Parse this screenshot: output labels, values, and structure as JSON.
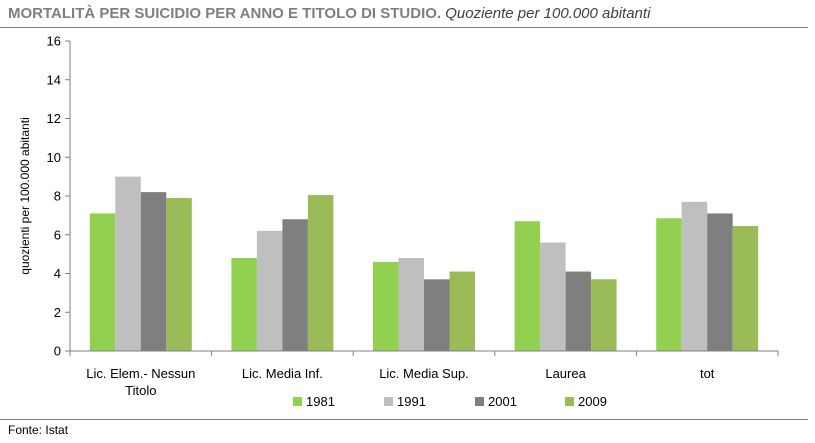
{
  "title": {
    "main": "MORTALITÀ PER SUICIDIO PER ANNO E TITOLO DI STUDIO.",
    "sub": "Quoziente per 100.000 abitanti"
  },
  "source": "Fonte: Istat",
  "chart_data": {
    "type": "bar",
    "title": "MORTALITÀ PER SUICIDIO PER ANNO E TITOLO DI STUDIO. Quoziente per 100.000 abitanti",
    "xlabel": "",
    "ylabel": "quozienti per 100.000 abitanti",
    "ylim": [
      0,
      16
    ],
    "yticks": [
      0,
      2,
      4,
      6,
      8,
      10,
      12,
      14,
      16
    ],
    "grid": false,
    "legend": "bottom",
    "categories": [
      [
        "Lic. Elem.- Nessun",
        "Titolo"
      ],
      [
        "Lic. Media Inf."
      ],
      [
        "Lic. Media Sup."
      ],
      [
        "Laurea"
      ],
      [
        "tot"
      ]
    ],
    "series": [
      {
        "name": "1981",
        "color": "#92d050",
        "values": [
          7.1,
          4.8,
          4.6,
          6.7,
          6.85
        ]
      },
      {
        "name": "1991",
        "color": "#bfbfbf",
        "values": [
          9.0,
          6.2,
          4.8,
          5.6,
          7.7
        ]
      },
      {
        "name": "2001",
        "color": "#7f7f7f",
        "values": [
          8.2,
          6.8,
          3.7,
          4.1,
          7.1
        ]
      },
      {
        "name": "2009",
        "color": "#9bbb59",
        "values": [
          7.9,
          8.05,
          4.1,
          3.7,
          6.45
        ]
      }
    ]
  }
}
